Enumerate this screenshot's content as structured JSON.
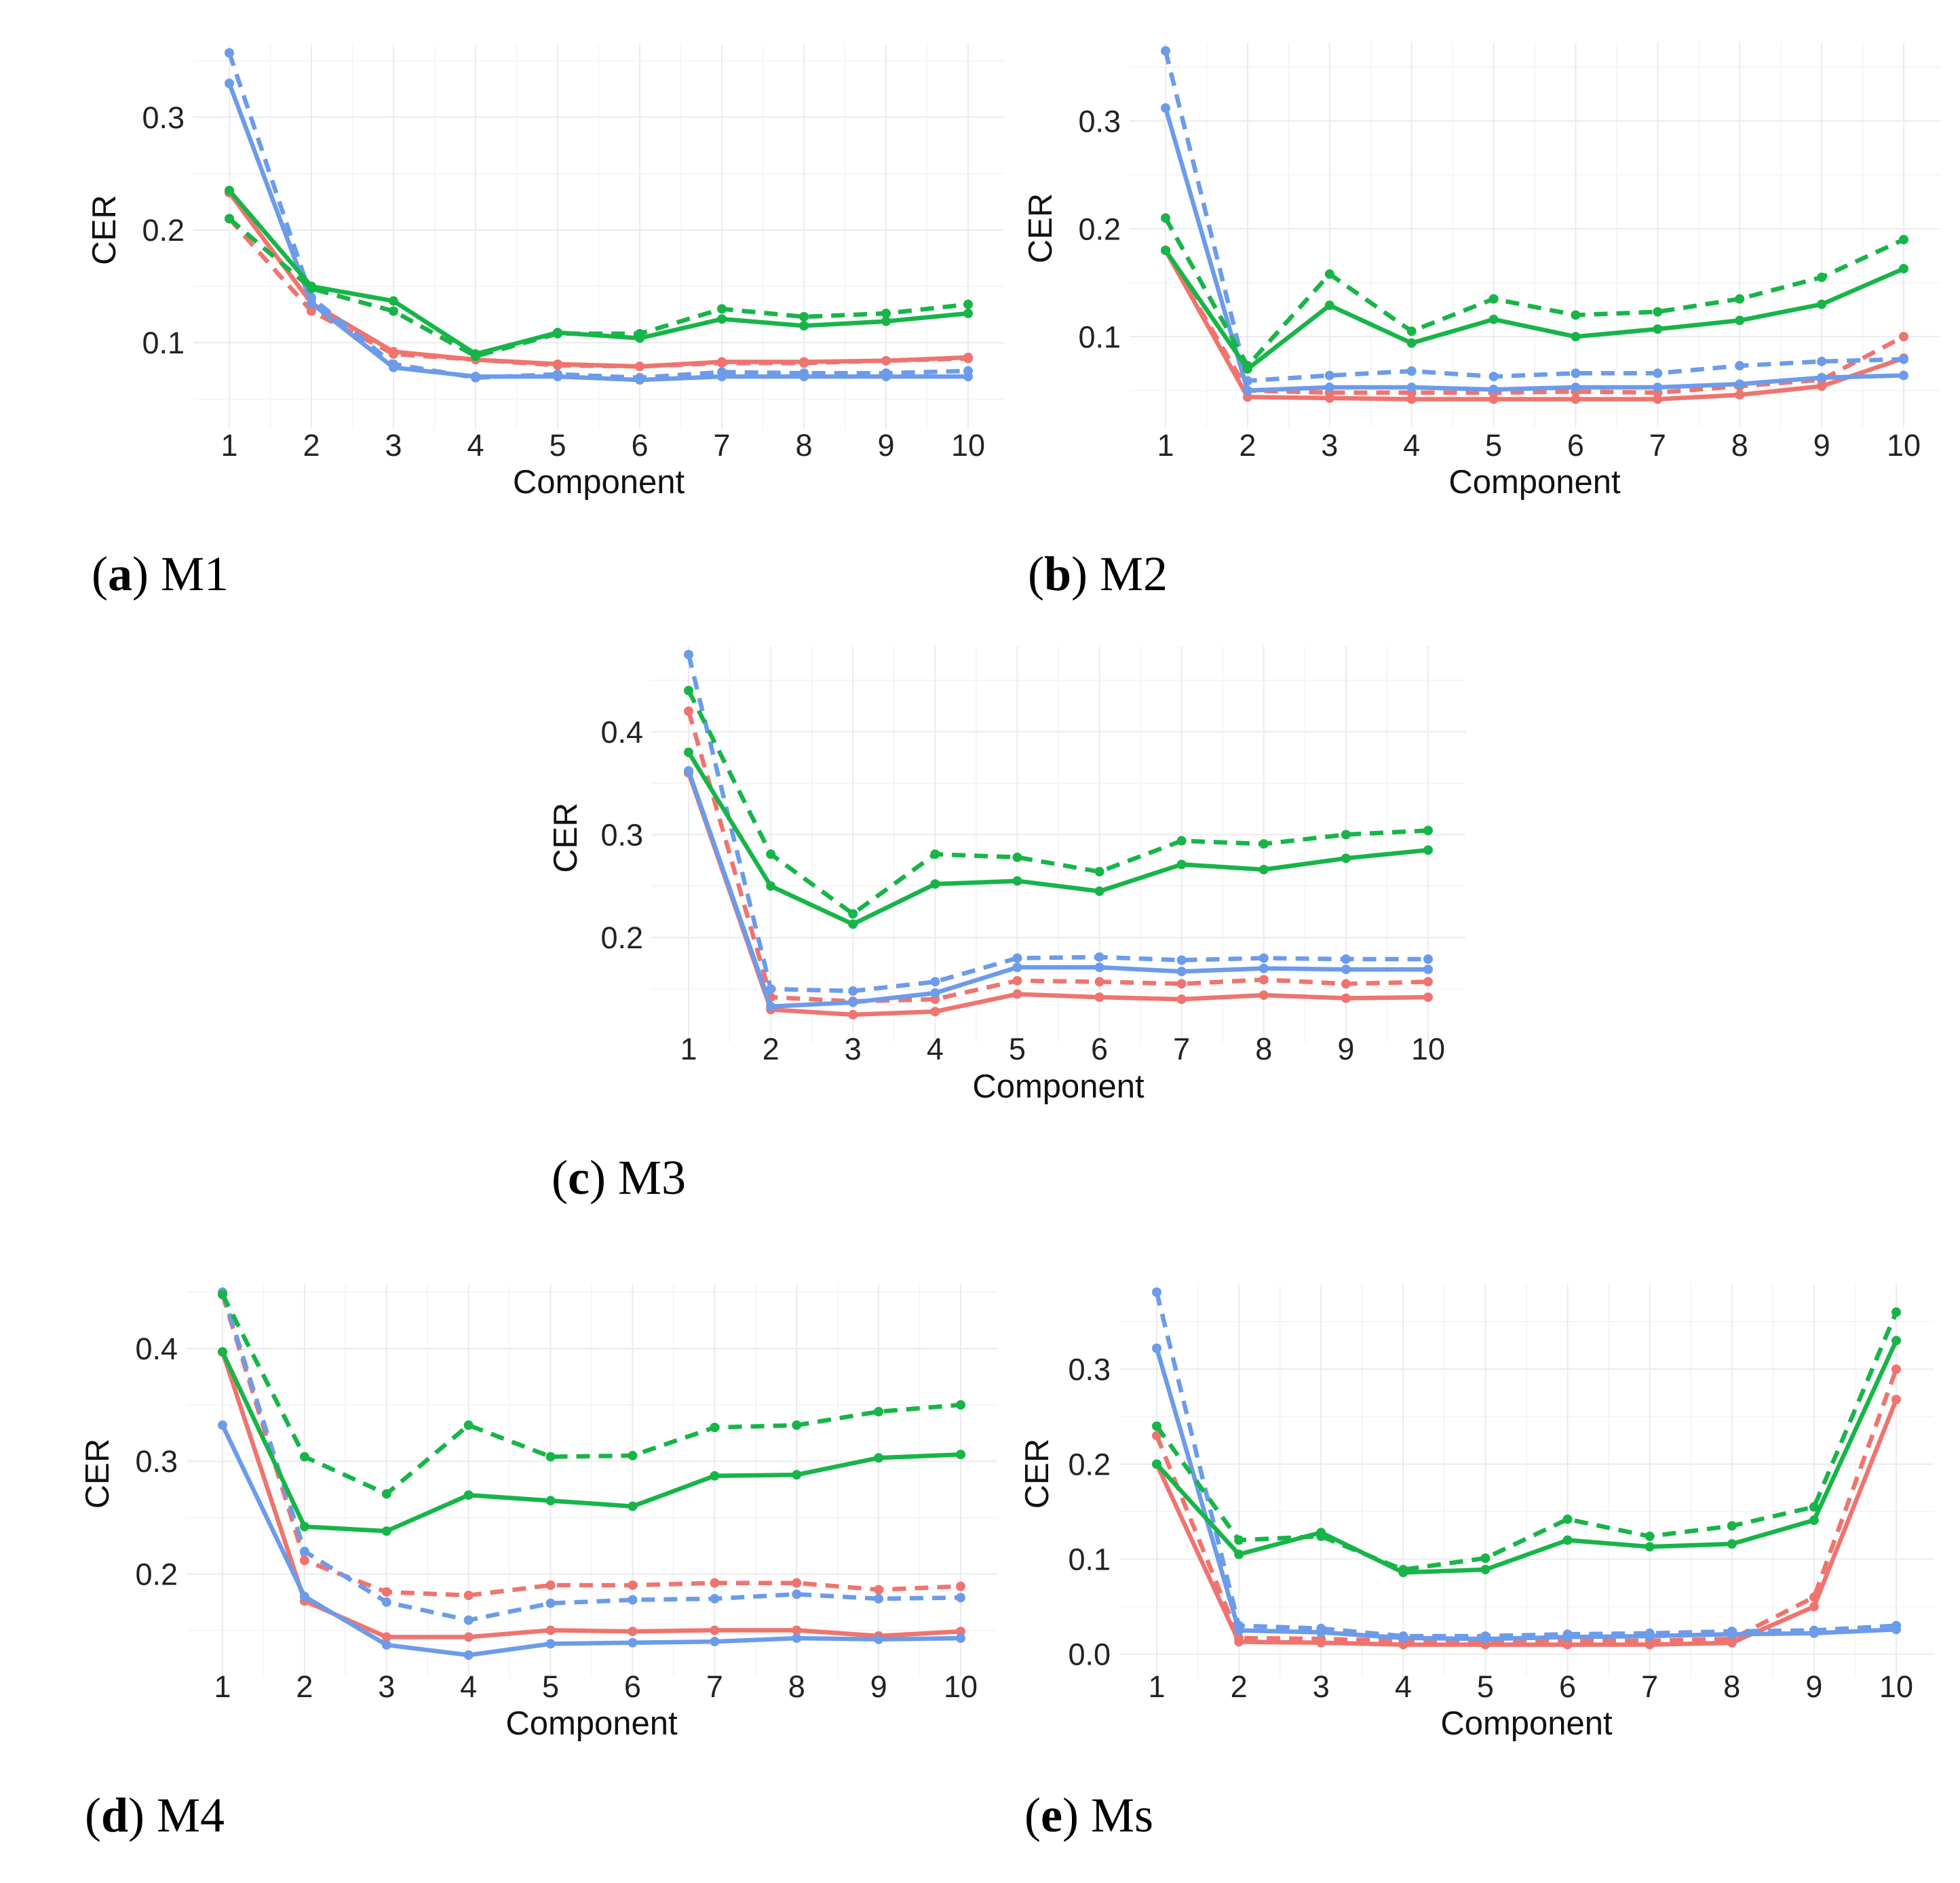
{
  "colors": {
    "red": "#ef746f",
    "blue": "#6c9bea",
    "green": "#17b548"
  },
  "charts": [
    {
      "caption_letter": "a",
      "caption_text": "M1",
      "chart_data": {
        "type": "line",
        "title": "M1",
        "xlabel": "Component",
        "ylabel": "CER",
        "categories": [
          "1",
          "2",
          "3",
          "4",
          "5",
          "6",
          "7",
          "8",
          "9",
          "10"
        ],
        "ylim": [
          0.043,
          0.357
        ],
        "yticks": [
          0.1,
          0.2,
          0.3
        ],
        "yticklabels": [
          "0.1",
          "0.2",
          "0.3"
        ],
        "series": [
          {
            "name": "red-solid",
            "color": "red",
            "dashed": false,
            "values": [
              0.233,
              0.135,
              0.092,
              0.085,
              0.081,
              0.079,
              0.083,
              0.083,
              0.084,
              0.087
            ]
          },
          {
            "name": "red-dashed",
            "color": "red",
            "dashed": true,
            "values": [
              0.21,
              0.128,
              0.09,
              0.085,
              0.08,
              0.079,
              0.082,
              0.082,
              0.084,
              0.086
            ]
          },
          {
            "name": "blue-solid",
            "color": "blue",
            "dashed": false,
            "values": [
              0.33,
              0.135,
              0.078,
              0.07,
              0.07,
              0.067,
              0.07,
              0.07,
              0.07,
              0.07
            ]
          },
          {
            "name": "blue-dashed",
            "color": "blue",
            "dashed": true,
            "values": [
              0.357,
              0.14,
              0.081,
              0.069,
              0.072,
              0.069,
              0.074,
              0.073,
              0.073,
              0.075
            ]
          },
          {
            "name": "green-solid",
            "color": "green",
            "dashed": false,
            "values": [
              0.235,
              0.15,
              0.137,
              0.09,
              0.109,
              0.104,
              0.121,
              0.115,
              0.119,
              0.126
            ]
          },
          {
            "name": "green-dashed",
            "color": "green",
            "dashed": true,
            "values": [
              0.21,
              0.148,
              0.128,
              0.088,
              0.108,
              0.108,
              0.13,
              0.123,
              0.126,
              0.134
            ]
          }
        ]
      }
    },
    {
      "caption_letter": "b",
      "caption_text": "M2",
      "chart_data": {
        "type": "line",
        "title": "M2",
        "xlabel": "Component",
        "ylabel": "CER",
        "categories": [
          "1",
          "2",
          "3",
          "4",
          "5",
          "6",
          "7",
          "8",
          "9",
          "10"
        ],
        "ylim": [
          0.036,
          0.365
        ],
        "yticks": [
          0.1,
          0.2,
          0.3
        ],
        "yticklabels": [
          "0.1",
          "0.2",
          "0.3"
        ],
        "series": [
          {
            "name": "red-solid",
            "color": "red",
            "dashed": false,
            "values": [
              0.18,
              0.044,
              0.043,
              0.042,
              0.042,
              0.042,
              0.042,
              0.046,
              0.054,
              0.08
            ]
          },
          {
            "name": "red-dashed",
            "color": "red",
            "dashed": true,
            "values": [
              0.18,
              0.05,
              0.048,
              0.048,
              0.048,
              0.049,
              0.048,
              0.054,
              0.06,
              0.1
            ]
          },
          {
            "name": "blue-solid",
            "color": "blue",
            "dashed": false,
            "values": [
              0.312,
              0.05,
              0.053,
              0.053,
              0.051,
              0.053,
              0.053,
              0.056,
              0.062,
              0.064
            ]
          },
          {
            "name": "blue-dashed",
            "color": "blue",
            "dashed": true,
            "values": [
              0.365,
              0.059,
              0.064,
              0.068,
              0.063,
              0.066,
              0.066,
              0.073,
              0.077,
              0.079
            ]
          },
          {
            "name": "green-solid",
            "color": "green",
            "dashed": false,
            "values": [
              0.18,
              0.07,
              0.129,
              0.094,
              0.116,
              0.1,
              0.107,
              0.115,
              0.13,
              0.163
            ]
          },
          {
            "name": "green-dashed",
            "color": "green",
            "dashed": true,
            "values": [
              0.21,
              0.073,
              0.158,
              0.105,
              0.135,
              0.12,
              0.123,
              0.135,
              0.155,
              0.19
            ]
          }
        ]
      }
    },
    {
      "caption_letter": "c",
      "caption_text": "M3",
      "chart_data": {
        "type": "line",
        "title": "M3",
        "xlabel": "Component",
        "ylabel": "CER",
        "categories": [
          "1",
          "2",
          "3",
          "4",
          "5",
          "6",
          "7",
          "8",
          "9",
          "10"
        ],
        "ylim": [
          0.119,
          0.475
        ],
        "yticks": [
          0.2,
          0.3,
          0.4
        ],
        "yticklabels": [
          "0.2",
          "0.3",
          "0.4"
        ],
        "series": [
          {
            "name": "red-solid",
            "color": "red",
            "dashed": false,
            "values": [
              0.36,
              0.13,
              0.125,
              0.128,
              0.145,
              0.142,
              0.14,
              0.144,
              0.141,
              0.142
            ]
          },
          {
            "name": "red-dashed",
            "color": "red",
            "dashed": true,
            "values": [
              0.42,
              0.142,
              0.138,
              0.14,
              0.158,
              0.157,
              0.155,
              0.159,
              0.155,
              0.157
            ]
          },
          {
            "name": "blue-solid",
            "color": "blue",
            "dashed": false,
            "values": [
              0.362,
              0.133,
              0.137,
              0.146,
              0.171,
              0.171,
              0.167,
              0.17,
              0.169,
              0.169
            ]
          },
          {
            "name": "blue-dashed",
            "color": "blue",
            "dashed": true,
            "values": [
              0.475,
              0.15,
              0.148,
              0.157,
              0.18,
              0.181,
              0.178,
              0.18,
              0.179,
              0.179
            ]
          },
          {
            "name": "green-solid",
            "color": "green",
            "dashed": false,
            "values": [
              0.38,
              0.25,
              0.213,
              0.252,
              0.255,
              0.245,
              0.271,
              0.266,
              0.277,
              0.285
            ]
          },
          {
            "name": "green-dashed",
            "color": "green",
            "dashed": true,
            "values": [
              0.44,
              0.281,
              0.223,
              0.281,
              0.278,
              0.264,
              0.294,
              0.291,
              0.3,
              0.304
            ]
          }
        ]
      }
    },
    {
      "caption_letter": "d",
      "caption_text": "M4",
      "chart_data": {
        "type": "line",
        "title": "M4",
        "xlabel": "Component",
        "ylabel": "CER",
        "categories": [
          "1",
          "2",
          "3",
          "4",
          "5",
          "6",
          "7",
          "8",
          "9",
          "10"
        ],
        "ylim": [
          0.128,
          0.45
        ],
        "yticks": [
          0.2,
          0.3,
          0.4
        ],
        "yticklabels": [
          "0.2",
          "0.3",
          "0.4"
        ],
        "series": [
          {
            "name": "red-solid",
            "color": "red",
            "dashed": false,
            "values": [
              0.397,
              0.176,
              0.144,
              0.144,
              0.15,
              0.149,
              0.15,
              0.15,
              0.145,
              0.149
            ]
          },
          {
            "name": "red-dashed",
            "color": "red",
            "dashed": true,
            "values": [
              0.448,
              0.212,
              0.184,
              0.181,
              0.19,
              0.19,
              0.192,
              0.192,
              0.186,
              0.189
            ]
          },
          {
            "name": "blue-solid",
            "color": "blue",
            "dashed": false,
            "values": [
              0.332,
              0.18,
              0.137,
              0.128,
              0.138,
              0.139,
              0.14,
              0.143,
              0.142,
              0.143
            ]
          },
          {
            "name": "blue-dashed",
            "color": "blue",
            "dashed": true,
            "values": [
              0.45,
              0.22,
              0.175,
              0.159,
              0.174,
              0.177,
              0.178,
              0.182,
              0.178,
              0.179
            ]
          },
          {
            "name": "green-solid",
            "color": "green",
            "dashed": false,
            "values": [
              0.397,
              0.242,
              0.238,
              0.27,
              0.265,
              0.26,
              0.287,
              0.288,
              0.303,
              0.306
            ]
          },
          {
            "name": "green-dashed",
            "color": "green",
            "dashed": true,
            "values": [
              0.448,
              0.304,
              0.271,
              0.332,
              0.304,
              0.305,
              0.33,
              0.332,
              0.344,
              0.35
            ]
          }
        ]
      }
    },
    {
      "caption_letter": "e",
      "caption_text": "Ms",
      "chart_data": {
        "type": "line",
        "title": "Ms",
        "xlabel": "Component",
        "ylabel": "CER",
        "categories": [
          "1",
          "2",
          "3",
          "4",
          "5",
          "6",
          "7",
          "8",
          "9",
          "10"
        ],
        "ylim": [
          -0.001,
          0.381
        ],
        "yticks": [
          0.0,
          0.1,
          0.2,
          0.3
        ],
        "yticklabels": [
          "0.0",
          "0.1",
          "0.2",
          "0.3"
        ],
        "series": [
          {
            "name": "red-solid",
            "color": "red",
            "dashed": false,
            "values": [
              0.2,
              0.013,
              0.012,
              0.01,
              0.01,
              0.01,
              0.01,
              0.012,
              0.05,
              0.268
            ]
          },
          {
            "name": "red-dashed",
            "color": "red",
            "dashed": true,
            "values": [
              0.23,
              0.017,
              0.016,
              0.014,
              0.013,
              0.014,
              0.014,
              0.016,
              0.06,
              0.3
            ]
          },
          {
            "name": "blue-solid",
            "color": "blue",
            "dashed": false,
            "values": [
              0.322,
              0.025,
              0.023,
              0.017,
              0.016,
              0.018,
              0.019,
              0.021,
              0.022,
              0.026
            ]
          },
          {
            "name": "blue-dashed",
            "color": "blue",
            "dashed": true,
            "values": [
              0.381,
              0.03,
              0.027,
              0.019,
              0.019,
              0.021,
              0.022,
              0.024,
              0.025,
              0.03
            ]
          },
          {
            "name": "green-solid",
            "color": "green",
            "dashed": false,
            "values": [
              0.2,
              0.105,
              0.128,
              0.086,
              0.089,
              0.12,
              0.113,
              0.116,
              0.141,
              0.33
            ]
          },
          {
            "name": "green-dashed",
            "color": "green",
            "dashed": true,
            "values": [
              0.24,
              0.12,
              0.124,
              0.089,
              0.101,
              0.142,
              0.124,
              0.135,
              0.155,
              0.36
            ]
          }
        ]
      }
    }
  ]
}
